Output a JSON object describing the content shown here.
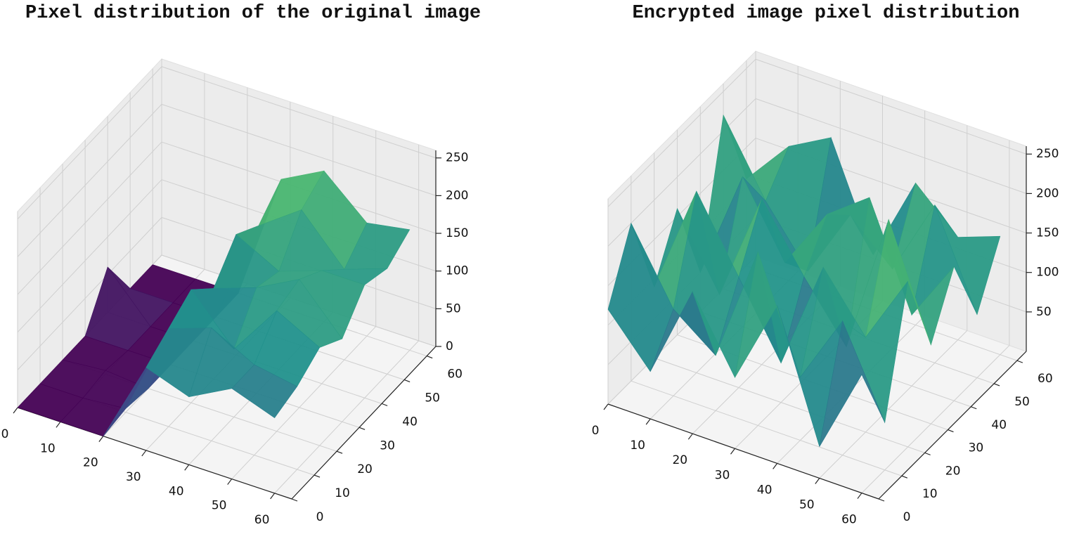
{
  "chart_data": [
    {
      "type": "surface",
      "title": "Pixel distribution of the original image",
      "colormap": "viridis",
      "x": [
        0,
        10,
        20,
        30,
        40,
        50,
        60
      ],
      "y": [
        0,
        10,
        20,
        30,
        40,
        50,
        60
      ],
      "z": [
        [
          0,
          0,
          0,
          110,
          90,
          120,
          100
        ],
        [
          0,
          0,
          5,
          130,
          150,
          120,
          110
        ],
        [
          0,
          5,
          0,
          150,
          90,
          160,
          130
        ],
        [
          0,
          0,
          0,
          120,
          140,
          170,
          110
        ],
        [
          60,
          0,
          0,
          160,
          130,
          150,
          150
        ],
        [
          0,
          0,
          0,
          140,
          180,
          120,
          140
        ],
        [
          0,
          0,
          0,
          170,
          200,
          150,
          160
        ]
      ],
      "xlim": [
        0,
        64
      ],
      "ylim": [
        0,
        64
      ],
      "zlim": [
        0,
        260
      ],
      "xticks": [
        0,
        10,
        20,
        30,
        40,
        50,
        60
      ],
      "yticks": [
        0,
        10,
        20,
        30,
        40,
        50,
        60
      ],
      "zticks": [
        0,
        50,
        100,
        150,
        200,
        250
      ],
      "grid": true
    },
    {
      "type": "surface",
      "title": "Encrypted image pixel distribution",
      "colormap": "viridis",
      "x": [
        0,
        10,
        20,
        30,
        40,
        50,
        60
      ],
      "y": [
        0,
        10,
        20,
        30,
        40,
        50,
        60
      ],
      "z": [
        [
          120,
          60,
          180,
          90,
          200,
          40,
          150
        ],
        [
          200,
          110,
          70,
          220,
          80,
          170,
          60
        ],
        [
          90,
          230,
          140,
          50,
          190,
          120,
          210
        ],
        [
          160,
          70,
          210,
          130,
          60,
          240,
          100
        ],
        [
          50,
          190,
          100,
          180,
          220,
          90,
          170
        ],
        [
          220,
          130,
          60,
          150,
          100,
          200,
          80
        ],
        [
          110,
          170,
          200,
          70,
          180,
          130,
          150
        ]
      ],
      "xlim": [
        0,
        64
      ],
      "ylim": [
        0,
        64
      ],
      "zlim": [
        0,
        260
      ],
      "xticks": [
        0,
        10,
        20,
        30,
        40,
        50,
        60
      ],
      "yticks": [
        0,
        10,
        20,
        30,
        40,
        50,
        60
      ],
      "zticks": [
        50,
        100,
        150,
        200,
        250
      ],
      "grid": true
    }
  ]
}
